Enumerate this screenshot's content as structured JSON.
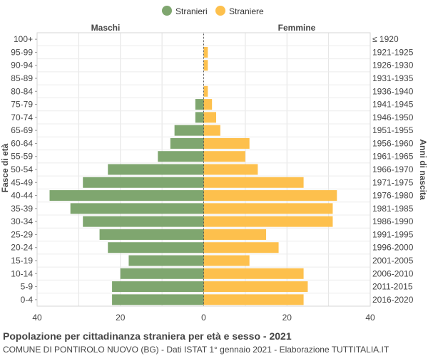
{
  "chart_data": {
    "type": "bar",
    "orientation": "horizontal",
    "title": "Popolazione per cittadinanza straniera per età e sesso - 2021",
    "subtitle": "COMUNE DI PONTIROLO NUOVO (BG) - Dati ISTAT 1° gennaio 2021 - Elaborazione TUTTITALIA.IT",
    "left_header": "Maschi",
    "right_header": "Femmine",
    "ylabel_left": "Fasce di età",
    "ylabel_right": "Anni di nascita",
    "xlim": [
      -40,
      40
    ],
    "x_ticks": [
      -40,
      -20,
      0,
      20,
      40
    ],
    "x_tick_labels": [
      "40",
      "20",
      "0",
      "20",
      "40"
    ],
    "grid": true,
    "legend_position": "top-center",
    "categories": [
      "100+",
      "95-99",
      "90-94",
      "85-89",
      "80-84",
      "75-79",
      "70-74",
      "65-69",
      "60-64",
      "55-59",
      "50-54",
      "45-49",
      "40-44",
      "35-39",
      "30-34",
      "25-29",
      "20-24",
      "15-19",
      "10-14",
      "5-9",
      "0-4"
    ],
    "birth_years": [
      "≤ 1920",
      "1921-1925",
      "1926-1930",
      "1931-1935",
      "1936-1940",
      "1941-1945",
      "1946-1950",
      "1951-1955",
      "1956-1960",
      "1961-1965",
      "1966-1970",
      "1971-1975",
      "1976-1980",
      "1981-1985",
      "1986-1990",
      "1991-1995",
      "1996-2000",
      "2001-2005",
      "2006-2010",
      "2011-2015",
      "2016-2020"
    ],
    "series": [
      {
        "name": "Stranieri",
        "color": "#7fa66f",
        "values": [
          0,
          0,
          0,
          0,
          0,
          2,
          2,
          7,
          8,
          11,
          23,
          29,
          37,
          32,
          29,
          25,
          23,
          18,
          20,
          22,
          22
        ]
      },
      {
        "name": "Straniere",
        "color": "#fdc04d",
        "values": [
          0,
          1,
          1,
          0,
          1,
          2,
          3,
          4,
          11,
          10,
          13,
          24,
          32,
          31,
          31,
          15,
          18,
          11,
          24,
          25,
          24
        ]
      }
    ]
  }
}
